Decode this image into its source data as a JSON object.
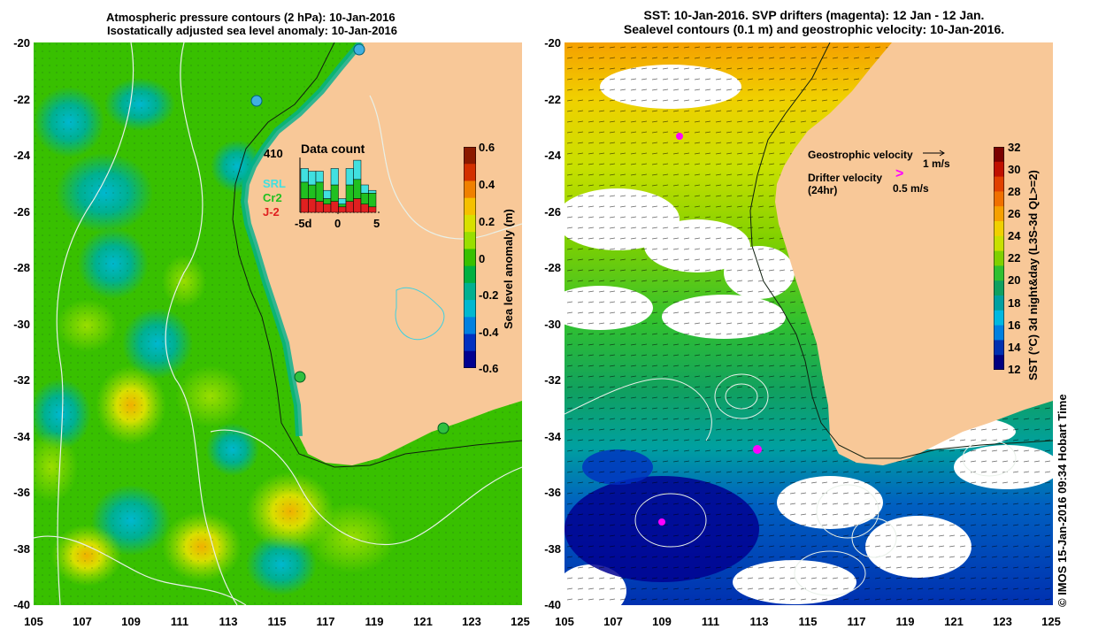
{
  "left_panel": {
    "title_line1": "Atmospheric pressure contours (2 hPa): 10-Jan-2016",
    "title_line2": "Isostatically adjusted sea level anomaly: 10-Jan-2016",
    "y_ticks": [
      "-20",
      "-22",
      "-24",
      "-26",
      "-28",
      "-30",
      "-32",
      "-34",
      "-36",
      "-38",
      "-40"
    ],
    "x_ticks": [
      "105",
      "107",
      "109",
      "111",
      "113",
      "115",
      "117",
      "119",
      "121",
      "123",
      "125"
    ],
    "colorbar": {
      "label": "Sea level anomaly (m)",
      "ticks": [
        "0.6",
        "0.4",
        "0.2",
        "0",
        "-0.2",
        "-0.4",
        "-0.6"
      ],
      "colors": [
        "#8b1a00",
        "#d33000",
        "#f08000",
        "#f5c000",
        "#d8e000",
        "#9ade00",
        "#38c000",
        "#00b040",
        "#00b090",
        "#00b8d0",
        "#0080e0",
        "#0030c0",
        "#000090"
      ]
    },
    "data_count": {
      "title": "Data count",
      "max_value": "410",
      "legend": [
        {
          "name": "SRL",
          "color": "#40e0e0"
        },
        {
          "name": "Cr2",
          "color": "#20c020"
        },
        {
          "name": "J-2",
          "color": "#e02020"
        }
      ],
      "x_labels": [
        "-5d",
        "0",
        "5"
      ],
      "bars": [
        {
          "j2": 0.25,
          "cr2": 0.3,
          "srl": 0.25
        },
        {
          "j2": 0.25,
          "cr2": 0.25,
          "srl": 0.25
        },
        {
          "j2": 0.2,
          "cr2": 0.35,
          "srl": 0.2
        },
        {
          "j2": 0.15,
          "cr2": 0.1,
          "srl": 0.15
        },
        {
          "j2": 0.2,
          "cr2": 0.3,
          "srl": 0.3
        },
        {
          "j2": 0.1,
          "cr2": 0.05,
          "srl": 0.1
        },
        {
          "j2": 0.2,
          "cr2": 0.3,
          "srl": 0.3
        },
        {
          "j2": 0.25,
          "cr2": 0.35,
          "srl": 0.35
        },
        {
          "j2": 0.15,
          "cr2": 0.2,
          "srl": 0.15
        },
        {
          "j2": 0.1,
          "cr2": 0.25,
          "srl": 0.05
        }
      ]
    }
  },
  "right_panel": {
    "title_line1": "SST: 10-Jan-2016. SVP drifters (magenta): 12 Jan - 12 Jan.",
    "title_line2": "Sealevel contours (0.1 m) and geostrophic velocity: 10-Jan-2016.",
    "y_ticks": [
      "-20",
      "-22",
      "-24",
      "-26",
      "-28",
      "-30",
      "-32",
      "-34",
      "-36",
      "-38",
      "-40"
    ],
    "x_ticks": [
      "105",
      "107",
      "109",
      "111",
      "113",
      "115",
      "117",
      "119",
      "121",
      "123",
      "125"
    ],
    "colorbar": {
      "label": "SST (°C) 3d night&day (L3S-3d QL>=2)",
      "ticks": [
        "32",
        "30",
        "28",
        "26",
        "24",
        "22",
        "20",
        "18",
        "16",
        "14",
        "12"
      ],
      "colors": [
        "#7a0000",
        "#c01000",
        "#e04000",
        "#f07000",
        "#f5a000",
        "#f0d000",
        "#c8e000",
        "#80d000",
        "#30c030",
        "#10a060",
        "#00a0a0",
        "#00b8e0",
        "#0080e0",
        "#0030b0",
        "#000080"
      ]
    },
    "legend": {
      "geo_label": "Geostrophic velocity",
      "geo_scale": "1 m/s",
      "drifter_label": "Drifter velocity",
      "drifter_sub": "(24hr)",
      "drifter_scale": "0.5 m/s"
    }
  },
  "colors": {
    "land": "#f8c898",
    "sea_green": "#40c040",
    "magenta": "#ff00ff"
  },
  "credit": "© IMOS 15-Jan-2016 09:34 Hobart Time"
}
